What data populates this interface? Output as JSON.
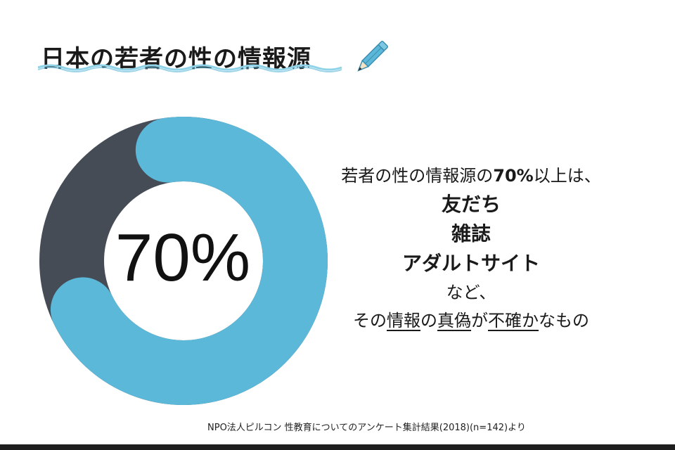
{
  "title": "日本の若者の性の情報源",
  "colors": {
    "accent": "#5bb8d9",
    "dark": "#454c56",
    "wave": "#8fd3e8"
  },
  "icons": {
    "pencil": "pencil-icon"
  },
  "chart_data": {
    "type": "pie",
    "donut": true,
    "center_label": "70%",
    "slices": [
      {
        "value": 70,
        "color": "#5bb8d9"
      },
      {
        "value": 30,
        "color": "#454c56"
      }
    ],
    "unit": "%"
  },
  "message": {
    "lead": "若者の性の情報源の",
    "lead_pct": "70%",
    "lead_tail": "以上は、",
    "items": [
      "友だち",
      "雑誌",
      "アダルトサイト"
    ],
    "nado": "など、",
    "conclusion_pre": "その",
    "conclusion_u1": "情報",
    "conclusion_mid1": "の",
    "conclusion_u2": "真偽",
    "conclusion_mid2": "が",
    "conclusion_u3": "不確か",
    "conclusion_post": "なもの"
  },
  "source": "NPO法人ピルコン 性教育についてのアンケート集計結果(2018)(n=142)より"
}
